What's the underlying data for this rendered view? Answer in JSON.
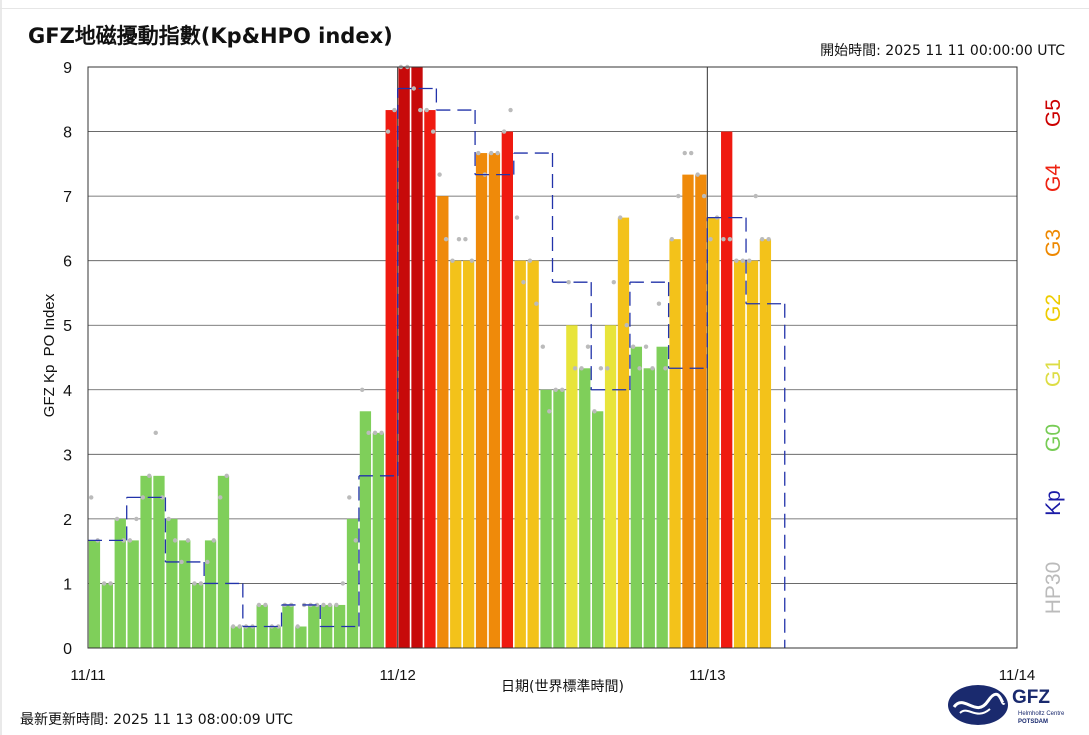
{
  "header": {
    "title": "GFZ地磁擾動指數(Kp&HPO index)",
    "start_time": "開始時間: 2025 11 11 00:00:00 UTC"
  },
  "footer": {
    "updated": "最新更新時間: 2025 11 13 08:00:09 UTC"
  },
  "logo": {
    "text": "GFZ",
    "sub1": "Helmholtz Centre",
    "sub2": "POTSDAM"
  },
  "chart_data": {
    "type": "bar",
    "title": "GFZ地磁擾動指數(Kp&HPO index)",
    "xlabel": "日期(世界標準時間)",
    "ylabel": "GFZ Kp  PO Index",
    "ylim": [
      0,
      9
    ],
    "yticks": [
      "0",
      "1",
      "2",
      "3",
      "4",
      "5",
      "6",
      "7",
      "8",
      "9"
    ],
    "xticks": [
      {
        "label": "11/11",
        "day": 0
      },
      {
        "label": "11/12",
        "day": 1
      },
      {
        "label": "11/13",
        "day": 2
      },
      {
        "label": "11/14",
        "day": 3
      }
    ],
    "grid": true,
    "right_legend": [
      {
        "label": "G5",
        "color": "#cc0000"
      },
      {
        "label": "G4",
        "color": "#ee2211"
      },
      {
        "label": "G3",
        "color": "#ee8800"
      },
      {
        "label": "G2",
        "color": "#eecc00"
      },
      {
        "label": "G1",
        "color": "#dddd44"
      },
      {
        "label": "G0",
        "color": "#77cc55"
      },
      {
        "label": "Kp",
        "color": "#1a1aa6"
      },
      {
        "label": "HP30",
        "color": "#bbbbbb"
      }
    ],
    "colors": {
      "g0": "#7fcf5a",
      "g1": "#e8e43a",
      "g2": "#f3c21a",
      "g3": "#ef8a0a",
      "g4": "#ef1a10",
      "g5": "#c70a0a",
      "kp": "#2233aa",
      "hp30": "#bbbbbb"
    },
    "hp60_series": {
      "name": "HP60",
      "start": "2025-11-11 00:00 UTC",
      "interval_hours": 1,
      "values": [
        1.667,
        1.0,
        2.0,
        1.667,
        2.667,
        2.667,
        2.0,
        1.667,
        1.0,
        1.667,
        2.667,
        0.333,
        0.333,
        0.667,
        0.333,
        0.667,
        0.333,
        0.667,
        0.667,
        0.667,
        2.0,
        3.667,
        3.333,
        8.333,
        9.0,
        9.0,
        8.333,
        7.0,
        6.0,
        6.0,
        7.667,
        7.667,
        8.0,
        6.0,
        6.0,
        4.0,
        4.0,
        5.0,
        4.333,
        3.667,
        5.0,
        6.667,
        4.667,
        4.333,
        4.667,
        6.333,
        7.333,
        7.333,
        6.667,
        8.0,
        6.0,
        6.0,
        6.333
      ]
    },
    "kp_series": {
      "name": "Kp",
      "start": "2025-11-11 00:00 UTC",
      "interval_hours": 3,
      "values": [
        1.667,
        2.333,
        1.333,
        1.0,
        0.333,
        0.667,
        0.333,
        2.667,
        8.667,
        8.333,
        7.333,
        7.667,
        5.667,
        4.0,
        5.667,
        4.333,
        6.667,
        5.333
      ]
    },
    "hp30_points": [
      [
        0.25,
        2.333
      ],
      [
        0.75,
        1.667
      ],
      [
        1.25,
        1.0
      ],
      [
        1.75,
        1.0
      ],
      [
        2.25,
        2.0
      ],
      [
        2.75,
        1.667
      ],
      [
        3.25,
        1.667
      ],
      [
        3.75,
        2.0
      ],
      [
        4.25,
        2.333
      ],
      [
        4.75,
        2.667
      ],
      [
        5.25,
        3.333
      ],
      [
        5.75,
        2.333
      ],
      [
        6.25,
        2.0
      ],
      [
        6.75,
        1.667
      ],
      [
        7.25,
        1.333
      ],
      [
        7.75,
        1.667
      ],
      [
        8.25,
        1.0
      ],
      [
        8.75,
        1.0
      ],
      [
        9.25,
        1.333
      ],
      [
        9.75,
        1.667
      ],
      [
        10.25,
        2.333
      ],
      [
        10.75,
        2.667
      ],
      [
        11.25,
        0.333
      ],
      [
        11.75,
        0.333
      ],
      [
        12.25,
        0.333
      ],
      [
        12.75,
        0.333
      ],
      [
        13.25,
        0.667
      ],
      [
        13.75,
        0.667
      ],
      [
        14.25,
        0.333
      ],
      [
        14.75,
        0.333
      ],
      [
        15.25,
        0.667
      ],
      [
        15.75,
        0.667
      ],
      [
        16.25,
        0.333
      ],
      [
        16.75,
        0.667
      ],
      [
        17.25,
        0.667
      ],
      [
        17.75,
        0.667
      ],
      [
        18.25,
        0.667
      ],
      [
        18.75,
        0.667
      ],
      [
        19.25,
        0.667
      ],
      [
        19.75,
        1.0
      ],
      [
        20.25,
        2.333
      ],
      [
        20.75,
        1.667
      ],
      [
        21.25,
        4.0
      ],
      [
        21.75,
        3.333
      ],
      [
        22.25,
        3.333
      ],
      [
        22.75,
        3.333
      ],
      [
        23.25,
        8.0
      ],
      [
        23.75,
        8.333
      ],
      [
        24.25,
        9.0
      ],
      [
        24.75,
        9.0
      ],
      [
        25.25,
        8.667
      ],
      [
        25.75,
        8.333
      ],
      [
        26.25,
        8.333
      ],
      [
        26.75,
        8.0
      ],
      [
        27.25,
        7.333
      ],
      [
        27.75,
        6.333
      ],
      [
        28.25,
        6.0
      ],
      [
        28.75,
        6.333
      ],
      [
        29.25,
        6.333
      ],
      [
        29.75,
        6.0
      ],
      [
        30.25,
        7.667
      ],
      [
        30.75,
        7.333
      ],
      [
        31.25,
        7.667
      ],
      [
        31.75,
        7.667
      ],
      [
        32.25,
        8.0
      ],
      [
        32.75,
        8.333
      ],
      [
        33.25,
        6.667
      ],
      [
        33.75,
        5.667
      ],
      [
        34.25,
        6.0
      ],
      [
        34.75,
        5.333
      ],
      [
        35.25,
        4.667
      ],
      [
        35.75,
        3.667
      ],
      [
        36.25,
        4.0
      ],
      [
        36.75,
        4.0
      ],
      [
        37.25,
        5.667
      ],
      [
        37.75,
        4.333
      ],
      [
        38.25,
        4.333
      ],
      [
        38.75,
        4.667
      ],
      [
        39.25,
        3.667
      ],
      [
        39.75,
        4.333
      ],
      [
        40.25,
        4.333
      ],
      [
        40.75,
        5.667
      ],
      [
        41.25,
        6.667
      ],
      [
        41.75,
        5.0
      ],
      [
        42.25,
        4.667
      ],
      [
        42.75,
        4.333
      ],
      [
        43.25,
        4.667
      ],
      [
        43.75,
        4.333
      ],
      [
        44.25,
        5.333
      ],
      [
        44.75,
        4.333
      ],
      [
        45.25,
        6.333
      ],
      [
        45.75,
        7.0
      ],
      [
        46.25,
        7.667
      ],
      [
        46.75,
        7.667
      ],
      [
        47.25,
        7.333
      ],
      [
        47.75,
        7.0
      ],
      [
        48.25,
        6.333
      ],
      [
        48.75,
        6.667
      ],
      [
        49.25,
        6.333
      ],
      [
        49.75,
        6.333
      ],
      [
        50.25,
        6.0
      ],
      [
        50.75,
        6.0
      ],
      [
        51.25,
        6.0
      ],
      [
        51.75,
        7.0
      ],
      [
        52.25,
        6.333
      ],
      [
        52.75,
        6.333
      ]
    ]
  }
}
